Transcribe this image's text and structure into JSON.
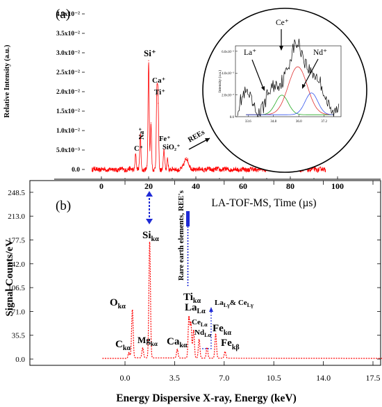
{
  "panels": {
    "a": {
      "label": "(a)",
      "ylabel": "Relative Intensity (a.u.)",
      "xlabel": "LA-TOF-MS, Time (µs)",
      "ytick_labels": [
        "0.0",
        "5.0x10⁻³",
        "1.0x10⁻²",
        "1.5x10⁻²",
        "2.0x10⁻²",
        "2.5x10⁻²",
        "3.0x10⁻²",
        "3.5x10⁻²",
        "4.0x10⁻²"
      ],
      "xtick_labels": [
        "0",
        "20",
        "40",
        "60",
        "80",
        "100"
      ],
      "peak_labels": [
        "Si⁺",
        "Ca⁺",
        "Ti⁺",
        "Na⁺",
        "C⁺",
        "Fe⁺",
        "SiO₂⁺",
        "REEs"
      ],
      "inset": {
        "ylabel": "Intensity (a.u.)",
        "ytick_labels": [
          "6.0x10⁻³",
          "4.0x10⁻³",
          "2.0x10⁻³",
          "0.0"
        ],
        "xtick_labels": [
          "33.6",
          "34.8",
          "36.0",
          "37.2"
        ],
        "peak_labels": [
          "Ce⁺",
          "La⁺",
          "Nd⁺"
        ]
      }
    },
    "b": {
      "label": "(b)",
      "ylabel": "Signal Counts/eV",
      "xlabel": "Energy Dispersive X-ray, Energy (keV)",
      "ytick_labels": [
        "0.0",
        "35.5",
        "71.0",
        "106.5",
        "142.0",
        "177.5",
        "213.0",
        "248.5"
      ],
      "xtick_labels": [
        "0.0",
        "3.5",
        "7.0",
        "10.5",
        "14.0",
        "17.5"
      ],
      "vertical_note": "Rare earth elements, REE's",
      "peak_labels": {
        "Si": "Si",
        "Si_sub": "kα",
        "O": "O",
        "O_sub": "kα",
        "Mg": "Mg",
        "Mg_sub": "kα",
        "C": "C",
        "C_sub": "kα",
        "Ca": "Ca",
        "Ca_sub": "kα",
        "Ti": "Ti",
        "Ti_sub": "kα",
        "La": "La",
        "La_sub": "Lα",
        "Ce": "Ce",
        "Ce_sub": "Lα",
        "Nd": "Nd",
        "Nd_sub": "Lα",
        "Fe1": "Fe",
        "Fe1_sub": "kα",
        "Fe2": "Fe",
        "Fe2_sub": "kβ",
        "LaCe": "La",
        "LaCe_sub": "Lγ",
        "LaCe_amp": "& Ce",
        "LaCe_sub2": "Lγ"
      }
    }
  },
  "colors": {
    "line": "#ff0000",
    "axis": "#000000",
    "arrow": "#1f2bd6",
    "fit_la": "#22aa22",
    "fit_ce": "#e03030",
    "fit_nd": "#3355ee"
  },
  "chart_data": [
    {
      "type": "line",
      "panel": "a",
      "xlabel": "LA-TOF-MS, Time (µs)",
      "ylabel": "Relative Intensity (a.u.)",
      "xlim": [
        -10,
        100
      ],
      "ylim": [
        -0.002,
        0.041
      ],
      "grid": false,
      "peaks": [
        {
          "label": "C⁺",
          "x": 14.5,
          "y": 0.004
        },
        {
          "label": "Na⁺",
          "x": 16.5,
          "y": 0.009
        },
        {
          "label": "Si⁺",
          "x": 20.0,
          "y": 0.028
        },
        {
          "label": "Si⁺ shoulder",
          "x": 21.0,
          "y": 0.012
        },
        {
          "label": "Ca⁺",
          "x": 23.5,
          "y": 0.019
        },
        {
          "label": "Ti⁺",
          "x": 24.0,
          "y": 0.017
        },
        {
          "label": "Fe⁺",
          "x": 26.5,
          "y": 0.005
        },
        {
          "label": "SiO₂⁺",
          "x": 28.0,
          "y": 0.003
        },
        {
          "label": "REEs",
          "x": 36.0,
          "y": 0.003
        }
      ],
      "baseline_range": [
        -4,
        95
      ],
      "baseline_noise": 0.0006
    },
    {
      "type": "line",
      "panel": "a-inset",
      "ylabel": "Intensity (a.u.)",
      "xlim": [
        33.0,
        38.0
      ],
      "ylim": [
        0.0,
        0.0065
      ],
      "grid": false,
      "fits": [
        {
          "label": "La⁺",
          "center": 35.2,
          "height": 0.0018,
          "width": 0.3
        },
        {
          "label": "Ce⁺",
          "center": 35.95,
          "height": 0.0044,
          "width": 0.45
        },
        {
          "label": "Nd⁺",
          "center": 36.6,
          "height": 0.002,
          "width": 0.3
        }
      ],
      "background": 0.0012
    },
    {
      "type": "line",
      "panel": "b",
      "xlabel": "Energy Dispersive X-ray, Energy (keV)",
      "ylabel": "Signal Counts/eV",
      "xlim": [
        -2.2,
        19.0
      ],
      "ylim": [
        -4,
        262
      ],
      "grid": false,
      "peaks": [
        {
          "label": "Ckα",
          "x": 0.28,
          "y": 8
        },
        {
          "label": "Okα",
          "x": 0.52,
          "y": 72
        },
        {
          "label": "Mgkα",
          "x": 1.25,
          "y": 15
        },
        {
          "label": "Sikα",
          "x": 1.74,
          "y": 174
        },
        {
          "label": "Cakα",
          "x": 3.69,
          "y": 13
        },
        {
          "label": "Tikα",
          "x": 4.51,
          "y": 61
        },
        {
          "label": "LaLα",
          "x": 4.65,
          "y": 52
        },
        {
          "label": "CeLα",
          "x": 4.84,
          "y": 42
        },
        {
          "label": "NdLα",
          "x": 5.23,
          "y": 28
        },
        {
          "label": "LaLγ & CeLγ",
          "x": 5.79,
          "y": 16
        },
        {
          "label": "Fekα",
          "x": 6.4,
          "y": 36
        },
        {
          "label": "Fekβ",
          "x": 7.06,
          "y": 10
        }
      ],
      "baseline": 1.0
    }
  ]
}
